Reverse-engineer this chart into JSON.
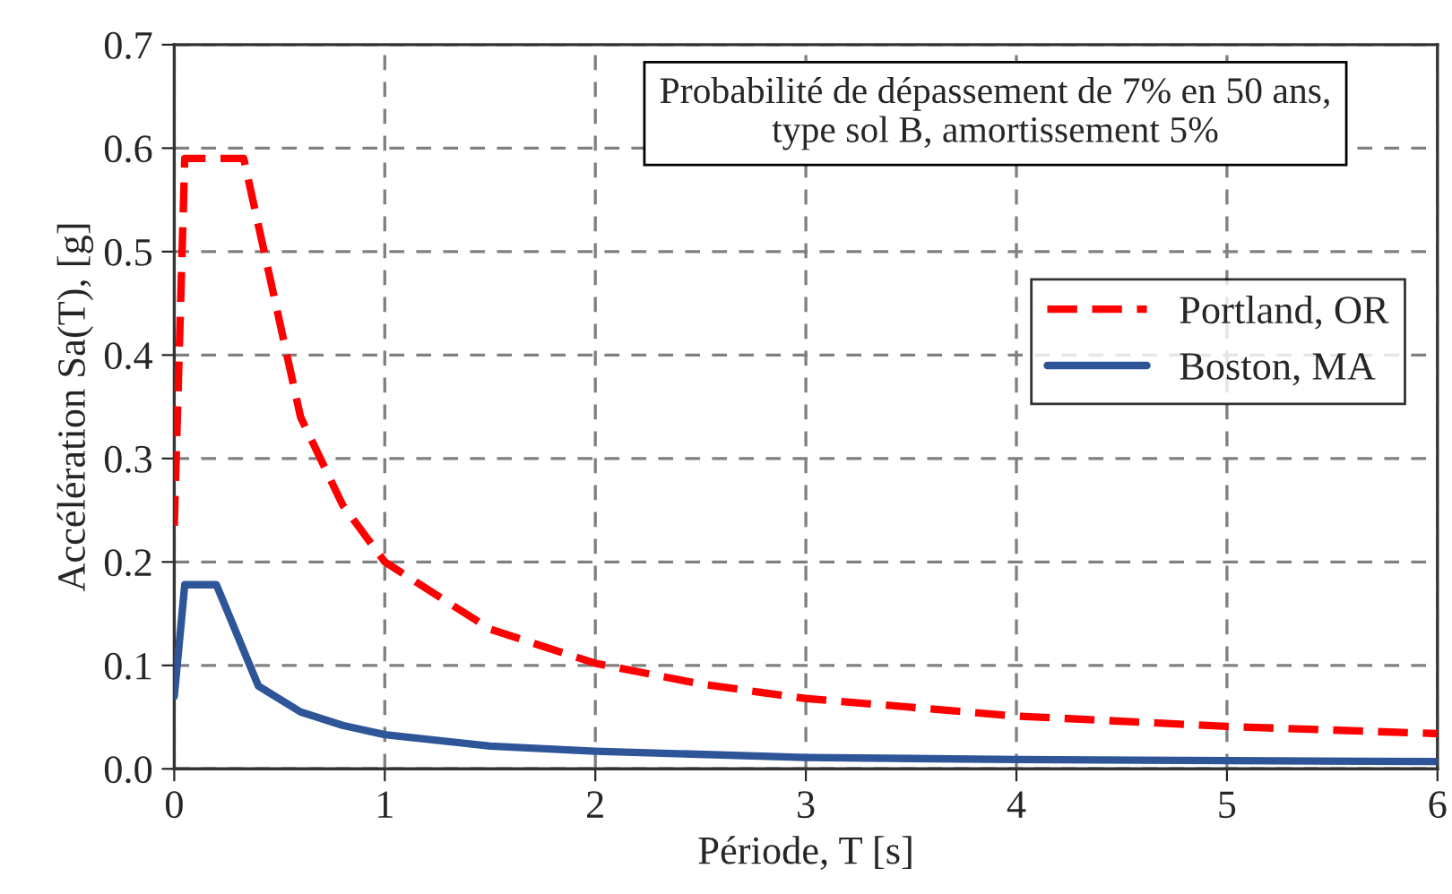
{
  "chart_data": {
    "type": "line",
    "xlabel": "Période, T [s]",
    "ylabel": "Accélération Sa(T), [g]",
    "annotations": [
      "Probabilité de dépassement de 7% en 50 ans,\ntype sol B, amortissement 5%"
    ],
    "series": [
      {
        "name": "Portland, OR",
        "color": "#ff0000",
        "line_style": "dashed",
        "x": [
          0,
          0.05,
          0.33,
          0.6,
          0.8,
          1,
          1.5,
          2,
          2.5,
          3,
          4,
          5,
          6
        ],
        "values": [
          0.235,
          0.59,
          0.59,
          0.34,
          0.255,
          0.2,
          0.135,
          0.102,
          0.082,
          0.068,
          0.051,
          0.041,
          0.034
        ]
      },
      {
        "name": "Boston, MA",
        "color": "#2e5597",
        "line_style": "solid",
        "x": [
          0,
          0.05,
          0.2,
          0.4,
          0.6,
          0.8,
          1,
          1.5,
          2,
          3,
          4,
          6
        ],
        "values": [
          0.07,
          0.178,
          0.178,
          0.08,
          0.055,
          0.042,
          0.033,
          0.022,
          0.017,
          0.011,
          0.009,
          0.007
        ]
      }
    ],
    "xlim": [
      0,
      6
    ],
    "xticks": [
      0,
      1,
      2,
      3,
      4,
      5,
      6
    ],
    "ylim": [
      0,
      0.7
    ],
    "yticks": [
      {
        "value": 0,
        "label": "0.0"
      },
      0.1,
      0.2,
      0.3,
      0.4,
      0.5,
      0.6,
      0.7
    ],
    "grid": true,
    "legend": "right",
    "marker": "none"
  }
}
